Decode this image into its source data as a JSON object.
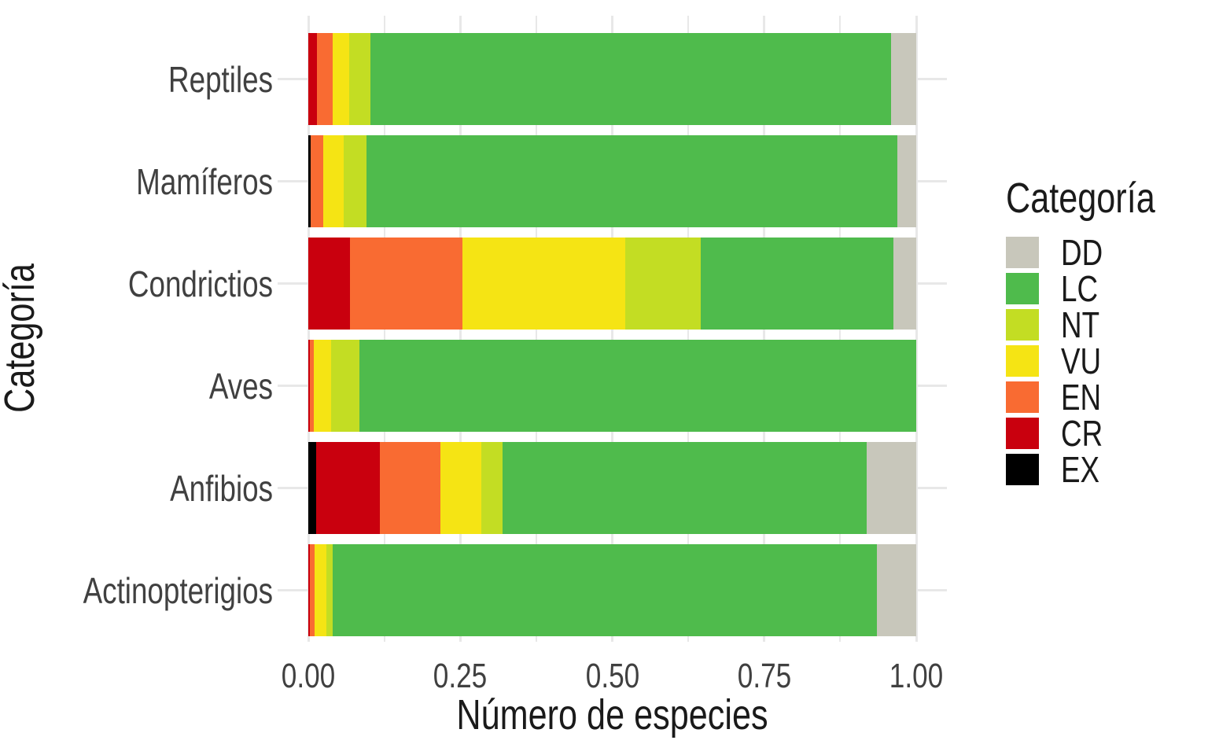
{
  "chart_data": {
    "type": "bar",
    "orientation": "horizontal",
    "stacked": true,
    "title": "",
    "xlabel": "Número de especies",
    "ylabel": "Categoría",
    "xlim": [
      0,
      1
    ],
    "xticks": [
      {
        "value": 0.0,
        "label": "0.00"
      },
      {
        "value": 0.25,
        "label": "0.25"
      },
      {
        "value": 0.5,
        "label": "0.50"
      },
      {
        "value": 0.75,
        "label": "0.75"
      },
      {
        "value": 1.0,
        "label": "1.00"
      }
    ],
    "minor_ticks": [
      0.125,
      0.375,
      0.625,
      0.875
    ],
    "categories": [
      "Reptiles",
      "Mamíferos",
      "Condrictios",
      "Aves",
      "Anfibios",
      "Actinopterigios"
    ],
    "series": [
      {
        "name": "EX",
        "color": "#000000",
        "values": [
          0.0,
          0.004,
          0.0,
          0.0,
          0.013,
          0.0
        ]
      },
      {
        "name": "CR",
        "color": "#C9000E",
        "values": [
          0.014,
          0.0,
          0.068,
          0.003,
          0.105,
          0.002
        ]
      },
      {
        "name": "EN",
        "color": "#F96B32",
        "values": [
          0.026,
          0.021,
          0.186,
          0.006,
          0.099,
          0.009
        ]
      },
      {
        "name": "VU",
        "color": "#F5E414",
        "values": [
          0.027,
          0.033,
          0.268,
          0.028,
          0.068,
          0.019
        ]
      },
      {
        "name": "NT",
        "color": "#C3DD23",
        "values": [
          0.035,
          0.038,
          0.124,
          0.047,
          0.034,
          0.01
        ]
      },
      {
        "name": "LC",
        "color": "#4FBB4C",
        "values": [
          0.857,
          0.873,
          0.317,
          0.916,
          0.6,
          0.895
        ]
      },
      {
        "name": "DD",
        "color": "#C8C7BB",
        "values": [
          0.041,
          0.031,
          0.037,
          0.0,
          0.081,
          0.065
        ]
      }
    ],
    "legend": {
      "title": "Categoría",
      "position": "right",
      "order": [
        "DD",
        "LC",
        "NT",
        "VU",
        "EN",
        "CR",
        "EX"
      ]
    },
    "grid": {
      "show": true,
      "color": "#E8E8E8"
    },
    "text_colors": {
      "axis_text": "#404040",
      "axis_title": "#1A1A1A",
      "legend_text": "#1A1A1A"
    }
  }
}
